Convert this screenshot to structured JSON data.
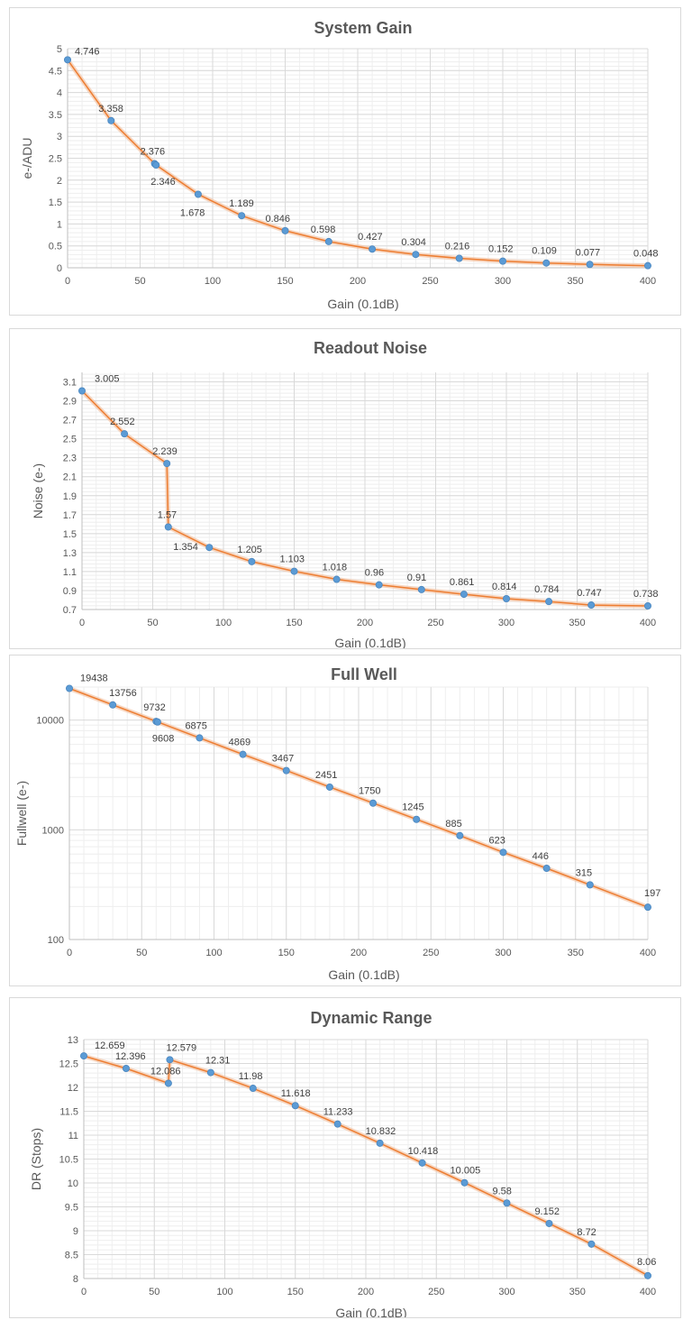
{
  "colors": {
    "line": "#ed7d31",
    "halo": "#f4c6a8",
    "marker": "#5b9bd5",
    "grid_major": "#d9d9d9",
    "grid_minor": "#eeeeee",
    "axis": "#bfbfbf",
    "text": "#595959"
  },
  "chart_data": [
    {
      "type": "line",
      "title": "System Gain",
      "xlabel": "Gain (0.1dB)",
      "ylabel": "e-/ADU",
      "xlim": [
        0,
        400
      ],
      "ylim": [
        0,
        5
      ],
      "x_ticks": [
        "0",
        "50",
        "100",
        "150",
        "200",
        "250",
        "300",
        "350",
        "400"
      ],
      "y_ticks": [
        "0",
        "0.5",
        "1",
        "1.5",
        "2",
        "2.5",
        "3",
        "3.5",
        "4",
        "4.5",
        "5"
      ],
      "grid": true,
      "series": [
        {
          "x": [
            0,
            30,
            60,
            61,
            90,
            120,
            150,
            180,
            210,
            240,
            270,
            300,
            330,
            360,
            400
          ],
          "y": [
            4.746,
            3.358,
            2.376,
            2.346,
            1.678,
            1.189,
            0.846,
            0.598,
            0.427,
            0.304,
            0.216,
            0.152,
            0.109,
            0.077,
            0.048
          ],
          "labels": [
            "4.746",
            "3.358",
            "2.376",
            "2.346",
            "1.678",
            "1.189",
            "0.846",
            "0.598",
            "0.427",
            "0.304",
            "0.216",
            "0.152",
            "0.109",
            "0.077",
            "0.048"
          ]
        }
      ]
    },
    {
      "type": "line",
      "title": "Readout Noise",
      "xlabel": "Gain (0.1dB)",
      "ylabel": "Noise (e-)",
      "xlim": [
        0,
        400
      ],
      "ylim": [
        0.7,
        3.2
      ],
      "x_ticks": [
        "0",
        "50",
        "100",
        "150",
        "200",
        "250",
        "300",
        "350",
        "400"
      ],
      "y_ticks": [
        "0.7",
        "0.9",
        "1.1",
        "1.3",
        "1.5",
        "1.7",
        "1.9",
        "2.1",
        "2.3",
        "2.5",
        "2.7",
        "2.9",
        "3.1"
      ],
      "grid": true,
      "series": [
        {
          "x": [
            0,
            30,
            60,
            61,
            90,
            120,
            150,
            180,
            210,
            240,
            270,
            300,
            330,
            360,
            400
          ],
          "y": [
            3.005,
            2.552,
            2.239,
            1.57,
            1.354,
            1.205,
            1.103,
            1.018,
            0.96,
            0.91,
            0.861,
            0.814,
            0.784,
            0.747,
            0.738
          ],
          "labels": [
            "3.005",
            "2.552",
            "2.239",
            "1.57",
            "1.354",
            "1.205",
            "1.103",
            "1.018",
            "0.96",
            "0.91",
            "0.861",
            "0.814",
            "0.784",
            "0.747",
            "0.738"
          ]
        }
      ]
    },
    {
      "type": "line",
      "title": "Full Well",
      "xlabel": "Gain (0.1dB)",
      "ylabel": "Fullwell (e-)",
      "xlim": [
        0,
        400
      ],
      "ylim": [
        100,
        20000
      ],
      "y_scale": "log",
      "x_ticks": [
        "0",
        "50",
        "100",
        "150",
        "200",
        "250",
        "300",
        "350",
        "400"
      ],
      "y_ticks": [
        "100",
        "1000",
        "10000"
      ],
      "grid": true,
      "series": [
        {
          "x": [
            0,
            30,
            60,
            61,
            90,
            120,
            150,
            180,
            210,
            240,
            270,
            300,
            330,
            360,
            400
          ],
          "y": [
            19438,
            13756,
            9732,
            9608,
            6875,
            4869,
            3467,
            2451,
            1750,
            1245,
            885,
            623,
            446,
            315,
            197
          ],
          "labels": [
            "19438",
            "13756",
            "9732",
            "9608",
            "6875",
            "4869",
            "3467",
            "2451",
            "1750",
            "1245",
            "885",
            "623",
            "446",
            "315",
            "197"
          ]
        }
      ]
    },
    {
      "type": "line",
      "title": "Dynamic Range",
      "xlabel": "Gain (0.1dB)",
      "ylabel": "DR (Stops)",
      "xlim": [
        0,
        400
      ],
      "ylim": [
        8,
        13
      ],
      "x_ticks": [
        "0",
        "50",
        "100",
        "150",
        "200",
        "250",
        "300",
        "350",
        "400"
      ],
      "y_ticks": [
        "8",
        "8.5",
        "9",
        "9.5",
        "10",
        "10.5",
        "11",
        "11.5",
        "12",
        "12.5",
        "13"
      ],
      "grid": true,
      "series": [
        {
          "x": [
            0,
            30,
            60,
            61,
            90,
            120,
            150,
            180,
            210,
            240,
            270,
            300,
            330,
            360,
            400
          ],
          "y": [
            12.659,
            12.396,
            12.086,
            12.579,
            12.31,
            11.98,
            11.618,
            11.233,
            10.832,
            10.418,
            10.005,
            9.58,
            9.152,
            8.72,
            8.06
          ],
          "labels": [
            "12.659",
            "12.396",
            "12.086",
            "12.579",
            "12.31",
            "11.98",
            "11.618",
            "11.233",
            "10.832",
            "10.418",
            "10.005",
            "9.58",
            "9.152",
            "8.72",
            "8.06"
          ]
        }
      ]
    }
  ]
}
